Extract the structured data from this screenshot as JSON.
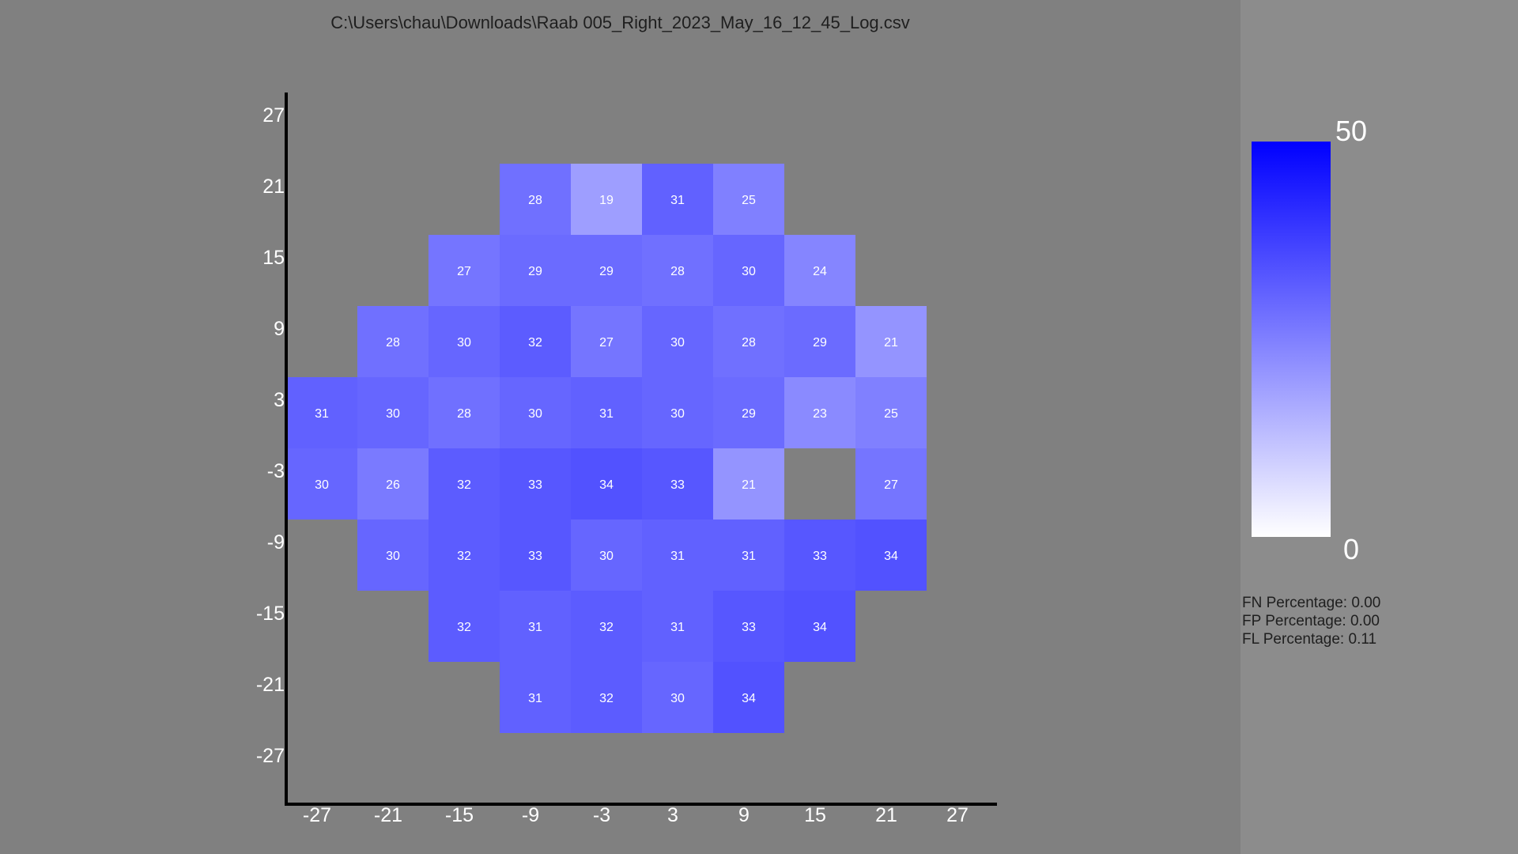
{
  "window": {
    "title": "C:\\Users\\chau\\Downloads\\Raab 005_Right_2023_May_16_12_45_Log.csv"
  },
  "colors": {
    "background": "#808080",
    "side_panel": "#8c8c8c",
    "scale_max_color": "#0000ff",
    "scale_min_color": "#ffffff"
  },
  "colorbar": {
    "max_label": "50",
    "min_label": "0",
    "max_value": 50,
    "min_value": 0
  },
  "stats": {
    "fn_label": "FN Percentage:",
    "fn_value": "0.00",
    "fp_label": "FP Percentage:",
    "fp_value": "0.00",
    "fl_label": "FL Percentage:",
    "fl_value": "0.11"
  },
  "chart_data": {
    "type": "heatmap",
    "title": "C:\\Users\\chau\\Downloads\\Raab 005_Right_2023_May_16_12_45_Log.csv",
    "xlabel": "",
    "ylabel": "",
    "x_ticks": [
      "-27",
      "-21",
      "-15",
      "-9",
      "-3",
      "3",
      "9",
      "15",
      "21",
      "27"
    ],
    "y_ticks": [
      "27",
      "21",
      "15",
      "9",
      "3",
      "-3",
      "-9",
      "-15",
      "-21",
      "-27"
    ],
    "xlim": [
      -30,
      30
    ],
    "ylim": [
      -30,
      30
    ],
    "color_scale": [
      0,
      50
    ],
    "cells": [
      {
        "x": -9,
        "y": 21,
        "value": 28
      },
      {
        "x": -3,
        "y": 21,
        "value": 19
      },
      {
        "x": 3,
        "y": 21,
        "value": 31
      },
      {
        "x": 9,
        "y": 21,
        "value": 25
      },
      {
        "x": -15,
        "y": 15,
        "value": 27
      },
      {
        "x": -9,
        "y": 15,
        "value": 29
      },
      {
        "x": -3,
        "y": 15,
        "value": 29
      },
      {
        "x": 3,
        "y": 15,
        "value": 28
      },
      {
        "x": 9,
        "y": 15,
        "value": 30
      },
      {
        "x": 15,
        "y": 15,
        "value": 24
      },
      {
        "x": -21,
        "y": 9,
        "value": 28
      },
      {
        "x": -15,
        "y": 9,
        "value": 30
      },
      {
        "x": -9,
        "y": 9,
        "value": 32
      },
      {
        "x": -3,
        "y": 9,
        "value": 27
      },
      {
        "x": 3,
        "y": 9,
        "value": 30
      },
      {
        "x": 9,
        "y": 9,
        "value": 28
      },
      {
        "x": 15,
        "y": 9,
        "value": 29
      },
      {
        "x": 21,
        "y": 9,
        "value": 21
      },
      {
        "x": -27,
        "y": 3,
        "value": 31
      },
      {
        "x": -21,
        "y": 3,
        "value": 30
      },
      {
        "x": -15,
        "y": 3,
        "value": 28
      },
      {
        "x": -9,
        "y": 3,
        "value": 30
      },
      {
        "x": -3,
        "y": 3,
        "value": 31
      },
      {
        "x": 3,
        "y": 3,
        "value": 30
      },
      {
        "x": 9,
        "y": 3,
        "value": 29
      },
      {
        "x": 15,
        "y": 3,
        "value": 23
      },
      {
        "x": 21,
        "y": 3,
        "value": 25
      },
      {
        "x": -27,
        "y": -3,
        "value": 30
      },
      {
        "x": -21,
        "y": -3,
        "value": 26
      },
      {
        "x": -15,
        "y": -3,
        "value": 32
      },
      {
        "x": -9,
        "y": -3,
        "value": 33
      },
      {
        "x": -3,
        "y": -3,
        "value": 34
      },
      {
        "x": 3,
        "y": -3,
        "value": 33
      },
      {
        "x": 9,
        "y": -3,
        "value": 21
      },
      {
        "x": 21,
        "y": -3,
        "value": 27
      },
      {
        "x": -21,
        "y": -9,
        "value": 30
      },
      {
        "x": -15,
        "y": -9,
        "value": 32
      },
      {
        "x": -9,
        "y": -9,
        "value": 33
      },
      {
        "x": -3,
        "y": -9,
        "value": 30
      },
      {
        "x": 3,
        "y": -9,
        "value": 31
      },
      {
        "x": 9,
        "y": -9,
        "value": 31
      },
      {
        "x": 15,
        "y": -9,
        "value": 33
      },
      {
        "x": 21,
        "y": -9,
        "value": 34
      },
      {
        "x": -15,
        "y": -15,
        "value": 32
      },
      {
        "x": -9,
        "y": -15,
        "value": 31
      },
      {
        "x": -3,
        "y": -15,
        "value": 32
      },
      {
        "x": 3,
        "y": -15,
        "value": 31
      },
      {
        "x": 9,
        "y": -15,
        "value": 33
      },
      {
        "x": 15,
        "y": -15,
        "value": 34
      },
      {
        "x": -9,
        "y": -21,
        "value": 31
      },
      {
        "x": -3,
        "y": -21,
        "value": 32
      },
      {
        "x": 3,
        "y": -21,
        "value": 30
      },
      {
        "x": 9,
        "y": -21,
        "value": 34
      }
    ]
  }
}
